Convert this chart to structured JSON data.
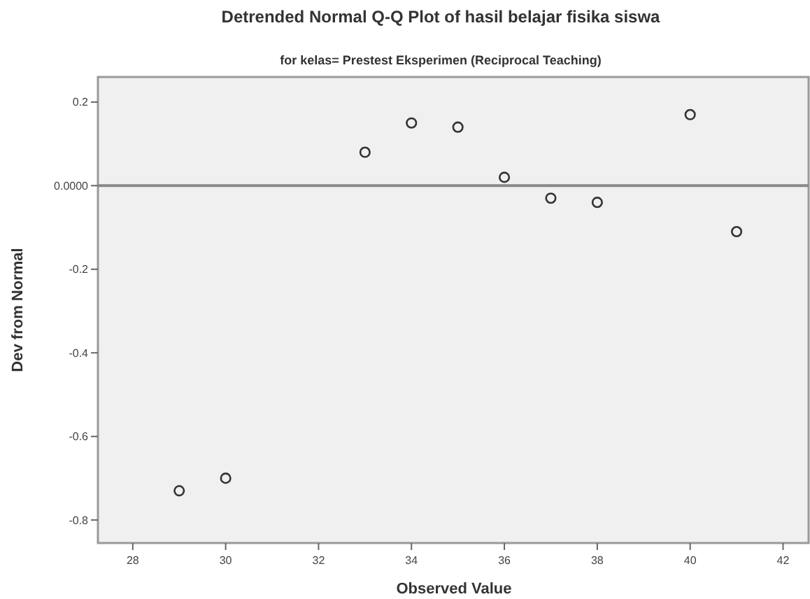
{
  "chart_data": {
    "type": "scatter",
    "title": "Detrended Normal Q-Q Plot of hasil belajar fisika siswa",
    "subtitle": "for kelas= Prestest Eksperimen (Reciprocal Teaching)",
    "xlabel": "Observed Value",
    "ylabel": "Dev from Normal",
    "x": [
      29,
      30,
      33,
      34,
      35,
      36,
      37,
      38,
      40,
      41
    ],
    "series": [
      {
        "color": "#333333",
        "values": [
          -0.73,
          -0.7,
          0.08,
          0.15,
          0.14,
          0.02,
          -0.03,
          -0.04,
          0.17,
          -0.11
        ]
      }
    ],
    "xlim": [
      27.25,
      42.55
    ],
    "xticks": [
      28,
      30,
      32,
      34,
      36,
      38,
      40,
      42
    ],
    "ylim": [
      -0.855,
      0.26
    ],
    "yticks": [
      0.2,
      {
        "value": 0,
        "label": "0.0000"
      },
      -0.2,
      -0.4,
      -0.6,
      -0.8
    ],
    "ref_lines": [
      {
        "axis": "y",
        "value": 0,
        "color": "#888888"
      }
    ],
    "marker": "circle",
    "grid": false
  }
}
